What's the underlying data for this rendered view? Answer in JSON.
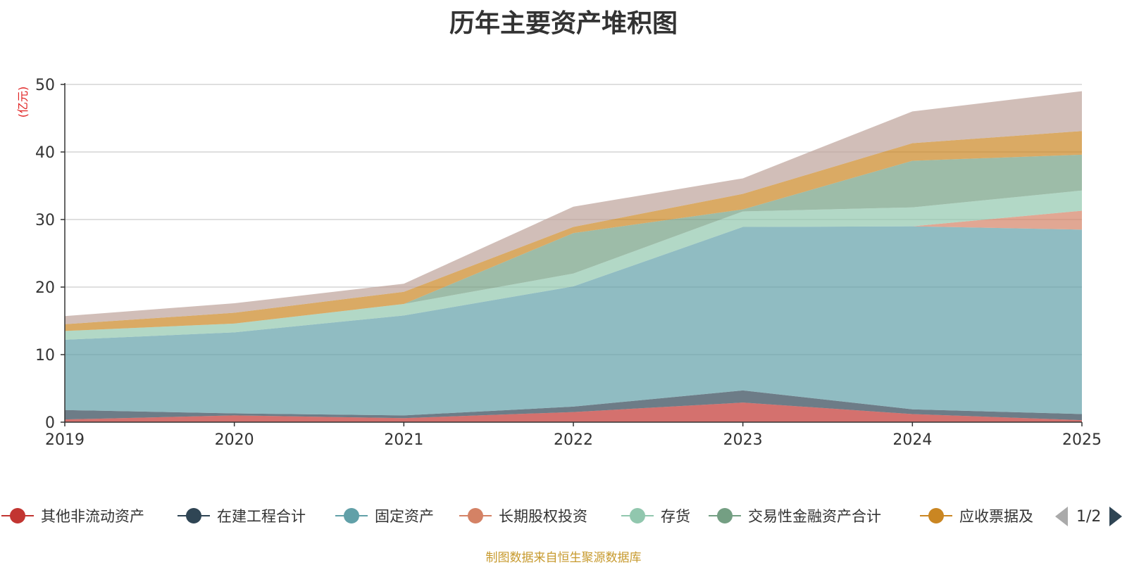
{
  "chart_data": {
    "type": "area",
    "stacked": true,
    "title": "历年主要资产堆积图",
    "ylabel": "(亿元)",
    "xlabel": "",
    "ylim": [
      0,
      50
    ],
    "yticks": [
      0,
      10,
      20,
      30,
      40,
      50
    ],
    "grid": true,
    "legend_position": "bottom",
    "categories": [
      "2019",
      "2020",
      "2021",
      "2022",
      "2023",
      "2024",
      "2025"
    ],
    "series": [
      {
        "name": "其他非流动资产",
        "color": "#c23531",
        "values": [
          0.4,
          1.0,
          0.6,
          1.5,
          2.9,
          1.2,
          0.3
        ]
      },
      {
        "name": "在建工程合计",
        "color": "#2f4554",
        "values": [
          1.4,
          0.3,
          0.4,
          0.8,
          1.8,
          0.7,
          0.9
        ]
      },
      {
        "name": "固定资产",
        "color": "#61a0a8",
        "values": [
          10.4,
          12.0,
          14.8,
          17.8,
          24.2,
          27.1,
          27.3
        ]
      },
      {
        "name": "长期股权投资",
        "color": "#d48265",
        "values": [
          0,
          0,
          0,
          0,
          0,
          0,
          2.8
        ]
      },
      {
        "name": "存货",
        "color": "#91c7ae",
        "values": [
          1.3,
          1.3,
          1.7,
          1.9,
          2.3,
          2.8,
          3.0
        ]
      },
      {
        "name": "交易性金融资产合计",
        "color": "#749f83",
        "values": [
          0,
          0,
          0,
          6.0,
          0.3,
          6.9,
          5.3
        ]
      },
      {
        "name": "应收票据及",
        "color": "#ca8622",
        "values": [
          1.0,
          1.6,
          1.8,
          0.9,
          2.3,
          2.6,
          3.5
        ]
      },
      {
        "name": "",
        "color": "#bda29a",
        "values": [
          1.2,
          1.4,
          1.2,
          3.0,
          2.3,
          4.7,
          5.9
        ]
      }
    ]
  },
  "legend": {
    "items": [
      {
        "label": "其他非流动资产",
        "color": "#c23531"
      },
      {
        "label": "在建工程合计",
        "color": "#2f4554"
      },
      {
        "label": "固定资产",
        "color": "#61a0a8"
      },
      {
        "label": "长期股权投资",
        "color": "#d48265"
      },
      {
        "label": "存货",
        "color": "#91c7ae"
      },
      {
        "label": "交易性金融资产合计",
        "color": "#749f83"
      },
      {
        "label": "应收票据及",
        "color": "#ca8622"
      }
    ],
    "pager": "1/2"
  },
  "source_note": "制图数据来自恒生聚源数据库"
}
